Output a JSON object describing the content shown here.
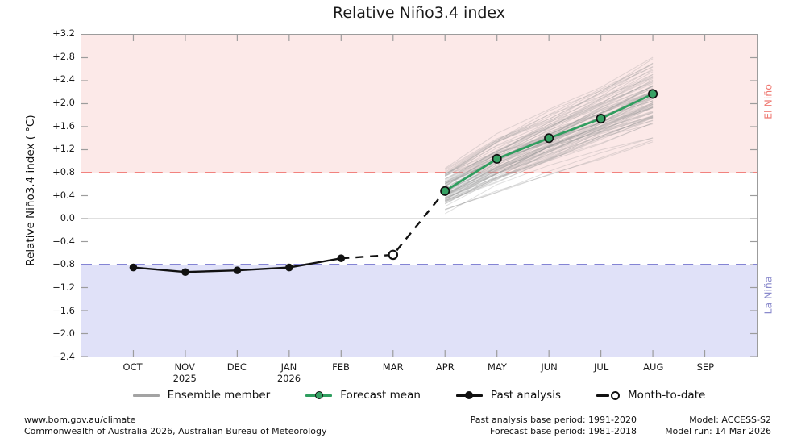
{
  "title": "Relative Niño3.4 index",
  "y_axis": {
    "label": "Relative Niño3.4 index ( °C)",
    "ticks": [
      "+3.2",
      "+2.8",
      "+2.4",
      "+2.0",
      "+1.6",
      "+1.2",
      "+0.8",
      "+0.4",
      "0.0",
      "−0.4",
      "−0.8",
      "−1.2",
      "−1.6",
      "−2.0",
      "−2.4"
    ]
  },
  "x_axis": {
    "months": [
      {
        "label": "OCT"
      },
      {
        "label": "NOV",
        "year": "2025"
      },
      {
        "label": "DEC"
      },
      {
        "label": "JAN",
        "year": "2026"
      },
      {
        "label": "FEB"
      },
      {
        "label": "MAR"
      },
      {
        "label": "APR"
      },
      {
        "label": "MAY"
      },
      {
        "label": "JUN"
      },
      {
        "label": "JUL"
      },
      {
        "label": "AUG"
      },
      {
        "label": "SEP"
      }
    ]
  },
  "bands": {
    "el_nino": {
      "label": "El Niño",
      "fill": "#fce9e8",
      "label_color": "#ef7a73",
      "threshold": 0.8
    },
    "la_nina": {
      "label": "La Niña",
      "fill": "#e0e1f8",
      "label_color": "#8a8acc",
      "threshold": -0.8
    }
  },
  "chart_data": {
    "type": "line",
    "x": [
      "OCT",
      "NOV",
      "DEC",
      "JAN",
      "FEB",
      "MAR",
      "APR",
      "MAY",
      "JUN",
      "JUL",
      "AUG",
      "SEP"
    ],
    "ylim": [
      -2.4,
      3.2
    ],
    "ytick_step": 0.4,
    "grid": "zero-line-only",
    "legend_position": "bottom",
    "thresholds": [
      {
        "name": "El Niño threshold",
        "value": 0.8,
        "color": "#f2827e",
        "style": "dashed"
      },
      {
        "name": "La Niña threshold",
        "value": -0.8,
        "color": "#8484d4",
        "style": "dashed"
      }
    ],
    "series": [
      {
        "name": "Past analysis",
        "type": "line",
        "x": [
          "OCT",
          "NOV",
          "DEC",
          "JAN",
          "FEB"
        ],
        "values": [
          -0.85,
          -0.93,
          -0.9,
          -0.85,
          -0.69
        ],
        "color": "#111111",
        "marker": "filled-dot"
      },
      {
        "name": "Month-to-date",
        "type": "point",
        "x": [
          "MAR"
        ],
        "values": [
          -0.63
        ],
        "color": "#111111",
        "marker": "open-dot"
      },
      {
        "name": "Forecast mean",
        "type": "line",
        "x": [
          "APR",
          "MAY",
          "JUN",
          "JUL",
          "AUG"
        ],
        "values": [
          0.48,
          1.04,
          1.4,
          1.74,
          2.17
        ],
        "color": "#2f9e5f",
        "marker_fill": "#37a164",
        "marker": "filled-dot-outlined"
      },
      {
        "name": "Ensemble member",
        "type": "ensemble",
        "x": [
          "APR",
          "MAY",
          "JUN",
          "JUL",
          "AUG"
        ],
        "count": 85,
        "envelope_min": [
          0.05,
          0.38,
          0.72,
          1.0,
          1.28
        ],
        "envelope_max": [
          0.95,
          1.52,
          1.95,
          2.42,
          2.92
        ],
        "color": "#999999"
      }
    ],
    "connector": {
      "style": "dashed",
      "from": "Past analysis",
      "via": "Month-to-date",
      "to": "Forecast mean"
    }
  },
  "legend": [
    {
      "label": "Ensemble member",
      "swatch": "ensemble"
    },
    {
      "label": "Forecast mean",
      "swatch": "forecast"
    },
    {
      "label": "Past analysis",
      "swatch": "past"
    },
    {
      "label": "Month-to-date",
      "swatch": "mtd"
    }
  ],
  "footer": {
    "left_line1": "www.bom.gov.au/climate",
    "left_line2": "Commonwealth of Australia 2026, Australian Bureau of Meteorology",
    "mid_line1": "Past analysis base period: 1991-2020",
    "mid_line2": "Forecast base period: 1981-2018",
    "right_line1": "Model: ACCESS-S2",
    "right_line2": "Model run: 14 Mar 2026"
  }
}
